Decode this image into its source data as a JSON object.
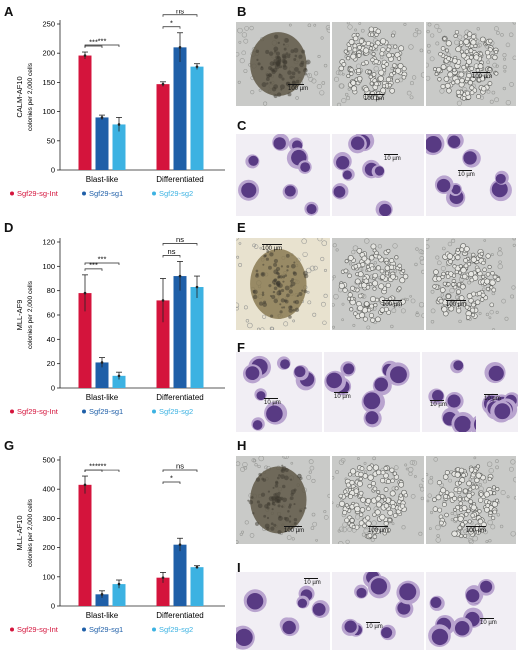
{
  "figure": {
    "panel_labels": [
      "A",
      "B",
      "C",
      "D",
      "E",
      "F",
      "G",
      "H",
      "I"
    ]
  },
  "legend_labels": [
    "Sgf29-sg-Int",
    "Sgf29-sg1",
    "Sgf29-sg2"
  ],
  "series_colors": [
    "#d4143c",
    "#1f5fa8",
    "#3cb2e2"
  ],
  "chart_data": [
    {
      "type": "bar",
      "ylabel_line1": "CALM-AF10",
      "ylabel_line2": "colonies per 2,000 cells",
      "categories": [
        "Blast-like",
        "Differentiated"
      ],
      "ylim": [
        0,
        250
      ],
      "yticks": [
        0,
        50,
        100,
        150,
        200,
        250
      ],
      "series": [
        {
          "name": "Sgf29-sg-Int",
          "values": [
            196,
            147
          ],
          "errors": [
            6,
            4
          ]
        },
        {
          "name": "Sgf29-sg1",
          "values": [
            90,
            210
          ],
          "errors": [
            4,
            25
          ]
        },
        {
          "name": "Sgf29-sg2",
          "values": [
            78,
            177
          ],
          "errors": [
            12,
            5
          ]
        }
      ],
      "significance": [
        {
          "group": 0,
          "from": 0,
          "to": 1,
          "label": "***"
        },
        {
          "group": 0,
          "from": 0,
          "to": 2,
          "label": "***"
        },
        {
          "group": 1,
          "from": 0,
          "to": 1,
          "label": "*"
        },
        {
          "group": 1,
          "from": 0,
          "to": 2,
          "label": "ns"
        }
      ]
    },
    {
      "type": "bar",
      "ylabel_line1": "MLL-AF9",
      "ylabel_line2": "colonies per 2,000 cells",
      "categories": [
        "Blast-like",
        "Differentiated"
      ],
      "ylim": [
        0,
        120
      ],
      "yticks": [
        0,
        20,
        40,
        60,
        80,
        100,
        120
      ],
      "series": [
        {
          "name": "Sgf29-sg-Int",
          "values": [
            78,
            72
          ],
          "errors": [
            15,
            18
          ]
        },
        {
          "name": "Sgf29-sg1",
          "values": [
            21,
            92
          ],
          "errors": [
            4,
            12
          ]
        },
        {
          "name": "Sgf29-sg2",
          "values": [
            10,
            83
          ],
          "errors": [
            3,
            9
          ]
        }
      ],
      "significance": [
        {
          "group": 0,
          "from": 0,
          "to": 1,
          "label": "***"
        },
        {
          "group": 0,
          "from": 0,
          "to": 2,
          "label": "***"
        },
        {
          "group": 1,
          "from": 0,
          "to": 1,
          "label": "ns"
        },
        {
          "group": 1,
          "from": 0,
          "to": 2,
          "label": "ns"
        }
      ]
    },
    {
      "type": "bar",
      "ylabel_line1": "MLL-AF10",
      "ylabel_line2": "colonies per 2,000 cells",
      "categories": [
        "Blast-like",
        "Differentiated"
      ],
      "ylim": [
        0,
        500
      ],
      "yticks": [
        0,
        100,
        200,
        300,
        400,
        500
      ],
      "series": [
        {
          "name": "Sgf29-sg-Int",
          "values": [
            415,
            97
          ],
          "errors": [
            30,
            18
          ]
        },
        {
          "name": "Sgf29-sg1",
          "values": [
            40,
            210
          ],
          "errors": [
            12,
            22
          ]
        },
        {
          "name": "Sgf29-sg2",
          "values": [
            75,
            133
          ],
          "errors": [
            14,
            5
          ]
        }
      ],
      "significance": [
        {
          "group": 0,
          "from": 0,
          "to": 1,
          "label": "***"
        },
        {
          "group": 0,
          "from": 0,
          "to": 2,
          "label": "***"
        },
        {
          "group": 1,
          "from": 0,
          "to": 1,
          "label": "*"
        },
        {
          "group": 1,
          "from": 0,
          "to": 2,
          "label": "ns"
        }
      ]
    }
  ],
  "micrographs": {
    "B": [
      "100 µm",
      "100 µm",
      "100 µm"
    ],
    "C": [
      "10 µm",
      "10 µm"
    ],
    "E": [
      "100 µm",
      "100 µm",
      "100 µm"
    ],
    "F": [
      "10 µm",
      "10 µm",
      "10 µm",
      "10 µm"
    ],
    "H": [
      "100 µm",
      "100 µm",
      "100 µm"
    ],
    "I": [
      "10 µm",
      "10 µm",
      "10 µm"
    ]
  }
}
